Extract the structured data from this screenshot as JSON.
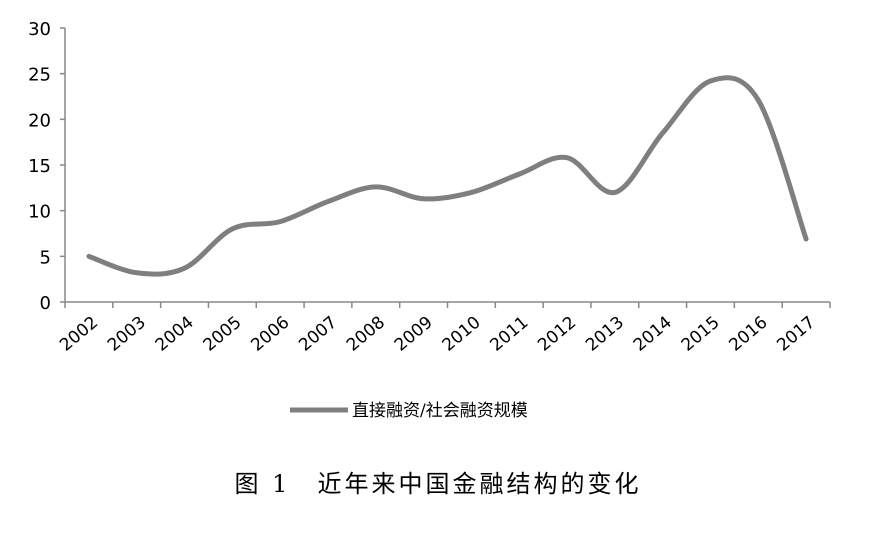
{
  "chart_data": {
    "type": "line",
    "categories": [
      "2002",
      "2003",
      "2004",
      "2005",
      "2006",
      "2007",
      "2008",
      "2009",
      "2010",
      "2011",
      "2012",
      "2013",
      "2014",
      "2015",
      "2016",
      "2017"
    ],
    "series": [
      {
        "name": "直接融资/社会融资规模",
        "color": "#7f7f7f",
        "values": [
          5.0,
          3.2,
          3.7,
          8.0,
          8.8,
          11.0,
          12.6,
          11.3,
          12.0,
          14.0,
          15.8,
          12.0,
          18.5,
          24.2,
          22.1,
          6.9
        ]
      }
    ],
    "ylim": [
      0,
      30
    ],
    "yticks": [
      0,
      5,
      10,
      15,
      20,
      25,
      30
    ],
    "grid": false,
    "legend": "bottom",
    "caption": "图 1　近年来中国金融结构的变化"
  }
}
